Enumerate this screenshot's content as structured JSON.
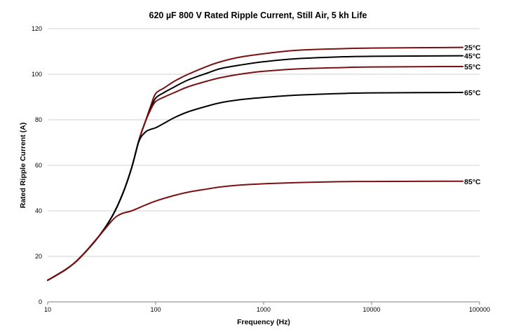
{
  "chart_data": {
    "type": "line",
    "title": "620 µF 800 V Rated Ripple Current, Still Air, 5 kh Life",
    "xlabel": "Frequency (Hz)",
    "ylabel": "Rated Ripple Current (A)",
    "xscale": "log",
    "xlim": [
      10,
      100000
    ],
    "ylim": [
      0,
      120
    ],
    "x_ticks": [
      10,
      100,
      1000,
      10000,
      100000
    ],
    "x_tick_labels": [
      "10",
      "100",
      "1000",
      "10000",
      "100000"
    ],
    "y_ticks": [
      0,
      20,
      40,
      60,
      80,
      100,
      120
    ],
    "y_tick_labels": [
      "0",
      "20",
      "40",
      "60",
      "80",
      "100",
      "120"
    ],
    "grid": "horizontal",
    "legend": "inline labels at right end of each series",
    "colors": {
      "black": "#000000",
      "maroon": "#7a1010",
      "grid": "#d0d0d0"
    },
    "series": [
      {
        "name": "25°C",
        "color": "#7a1010",
        "x": [
          10,
          15,
          20,
          30,
          40,
          50,
          60,
          70,
          80,
          90,
          100,
          120,
          150,
          200,
          300,
          400,
          600,
          1000,
          2000,
          5000,
          10000,
          70000
        ],
        "y": [
          9.5,
          14.5,
          19.5,
          29,
          38,
          48,
          59,
          71,
          79,
          86,
          91.5,
          94,
          97,
          100,
          103.5,
          105.5,
          107.5,
          109,
          110.5,
          111.2,
          111.5,
          111.8
        ]
      },
      {
        "name": "45°C",
        "color": "#000000",
        "x": [
          10,
          15,
          20,
          30,
          40,
          50,
          60,
          70,
          80,
          90,
          100,
          120,
          150,
          200,
          300,
          400,
          600,
          1000,
          2000,
          5000,
          10000,
          70000
        ],
        "y": [
          9.5,
          14.5,
          19.5,
          29,
          38,
          48,
          59,
          71,
          79,
          85,
          89.5,
          92,
          94.5,
          97.5,
          100.5,
          102.5,
          104,
          105.5,
          106.8,
          107.6,
          107.9,
          108.1
        ]
      },
      {
        "name": "55°C",
        "color": "#7a1010",
        "x": [
          10,
          15,
          20,
          30,
          40,
          50,
          60,
          70,
          80,
          90,
          100,
          120,
          150,
          200,
          300,
          400,
          600,
          1000,
          2000,
          5000,
          10000,
          70000
        ],
        "y": [
          9.5,
          14.5,
          19.5,
          29,
          38,
          48,
          59,
          71,
          79,
          84.5,
          88,
          90,
          92,
          94.5,
          97,
          98.5,
          100,
          101.3,
          102.3,
          102.9,
          103.2,
          103.4
        ]
      },
      {
        "name": "65°C",
        "color": "#000000",
        "x": [
          10,
          15,
          20,
          30,
          40,
          50,
          60,
          70,
          80,
          90,
          100,
          120,
          150,
          200,
          300,
          400,
          600,
          1000,
          2000,
          5000,
          10000,
          70000
        ],
        "y": [
          9.5,
          14.5,
          19.5,
          29,
          38,
          48,
          59,
          70.5,
          74.5,
          75.8,
          76.5,
          78.5,
          81,
          83.5,
          86,
          87.5,
          88.8,
          89.8,
          90.8,
          91.5,
          91.8,
          92
        ]
      },
      {
        "name": "85°C",
        "color": "#7a1010",
        "x": [
          10,
          15,
          20,
          30,
          40,
          45,
          50,
          60,
          80,
          100,
          150,
          200,
          300,
          400,
          600,
          1000,
          2000,
          5000,
          10000,
          70000
        ],
        "y": [
          9.5,
          14.5,
          19.5,
          29,
          36,
          38,
          39,
          40,
          42.5,
          44.3,
          46.8,
          48.2,
          49.6,
          50.5,
          51.3,
          51.9,
          52.4,
          52.8,
          52.9,
          53
        ]
      }
    ]
  }
}
